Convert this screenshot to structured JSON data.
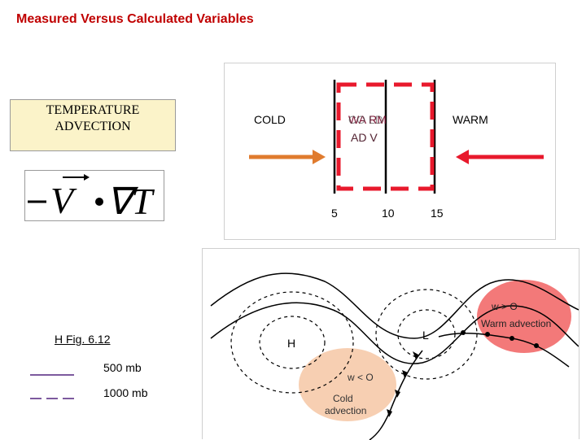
{
  "title": "Measured Versus Calculated Variables",
  "advection_box": {
    "line1": "TEMPERATURE",
    "line2": "ADVECTION"
  },
  "equation": {
    "text": "−V • ∇T",
    "vector_symbol": "V",
    "gradient_symbol": "∇T"
  },
  "diagram": {
    "cold_label": "COLD",
    "warm_label": "WARM",
    "center_label_line1": "WA RM",
    "center_label_line2": "AD V",
    "overlay_label_line1": "CO LD",
    "overlay_label_line2": "AD V",
    "tick_labels": [
      "5",
      "10",
      "15"
    ],
    "cold_arrow_color": "#e07b2e",
    "warm_arrow_color": "#e8192c",
    "dashed_box_color": "#e8192c"
  },
  "legend": {
    "caption": "H Fig. 6.12",
    "solid_label": "500 mb",
    "dashed_label": "1000 mb",
    "line_color": "#7d5a9e"
  },
  "map": {
    "high_label": "H",
    "low_label": "L",
    "warm_bubble": {
      "line1": "w > O",
      "line2": "Warm advection",
      "color": "#f26a6a"
    },
    "cold_bubble": {
      "line1": "w < O",
      "line2": "Cold",
      "line3": "advection",
      "color": "#f6c7a5"
    }
  }
}
